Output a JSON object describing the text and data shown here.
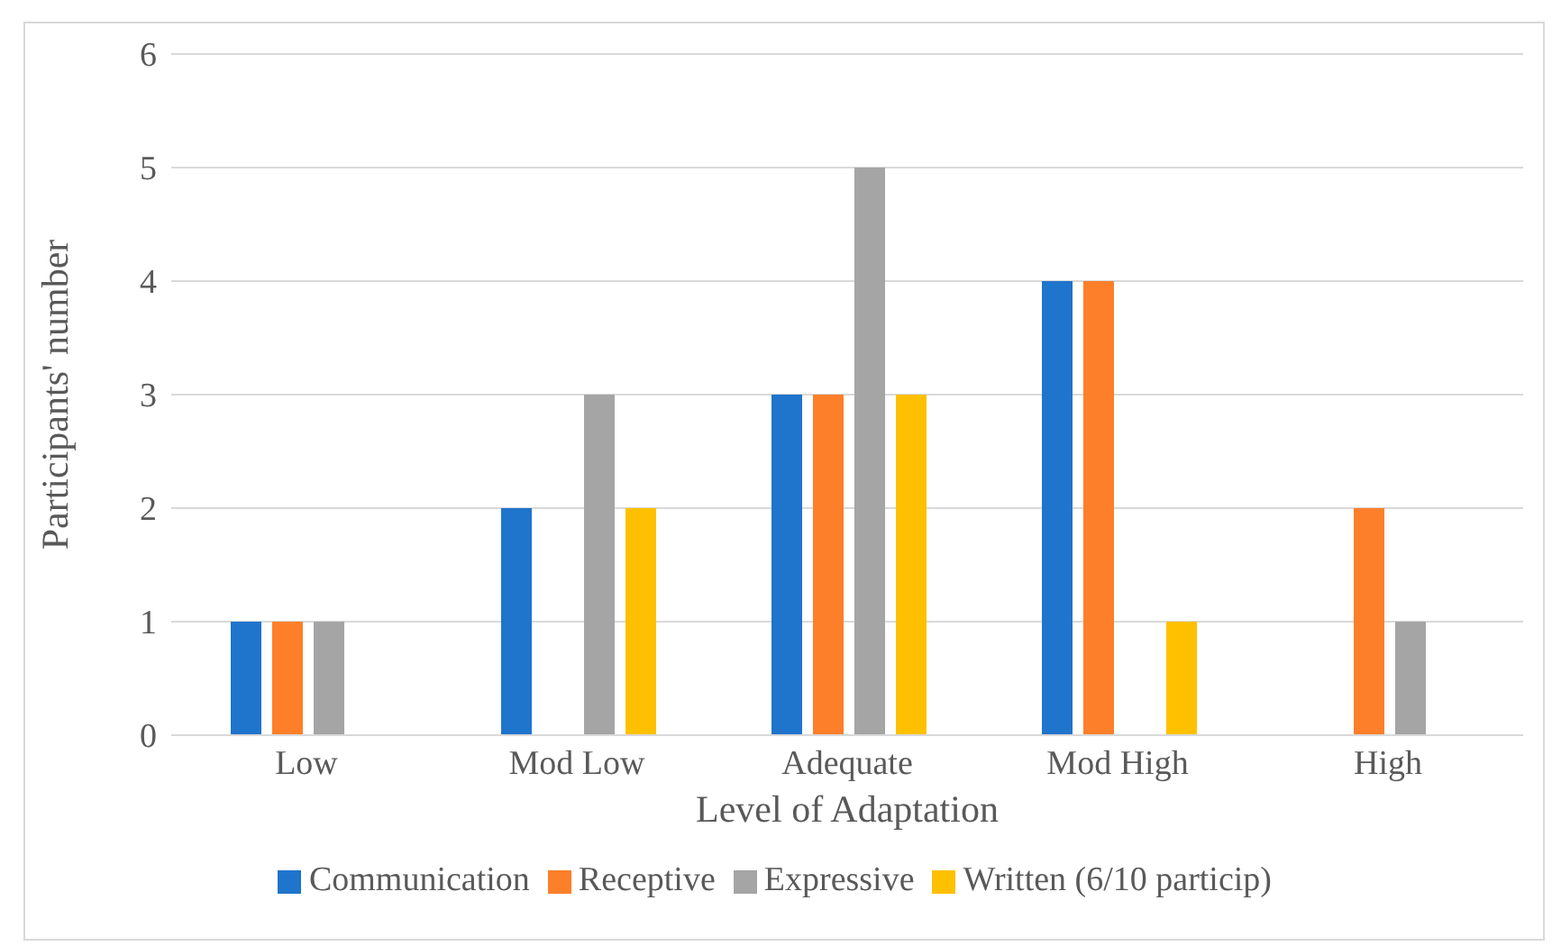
{
  "chart_data": {
    "type": "bar",
    "xlabel": "Level of Adaptation",
    "ylabel": "Participants' number",
    "categories": [
      "Low",
      "Mod Low",
      "Adequate",
      "Mod High",
      "High"
    ],
    "series": [
      {
        "name": "Communication",
        "color": "#1f74cc",
        "values": [
          1,
          2,
          3,
          4,
          0
        ]
      },
      {
        "name": "Receptive",
        "color": "#fd7f29",
        "values": [
          1,
          0,
          3,
          4,
          2
        ]
      },
      {
        "name": "Expressive",
        "color": "#a5a5a5",
        "values": [
          1,
          3,
          5,
          0,
          1
        ]
      },
      {
        "name": "Written (6/10 particip)",
        "color": "#ffc000",
        "values": [
          0,
          2,
          3,
          1,
          0
        ]
      }
    ],
    "ylim": [
      0,
      6
    ],
    "yticks": [
      0,
      1,
      2,
      3,
      4,
      5,
      6
    ],
    "grid": "y",
    "legend": "bottom"
  }
}
